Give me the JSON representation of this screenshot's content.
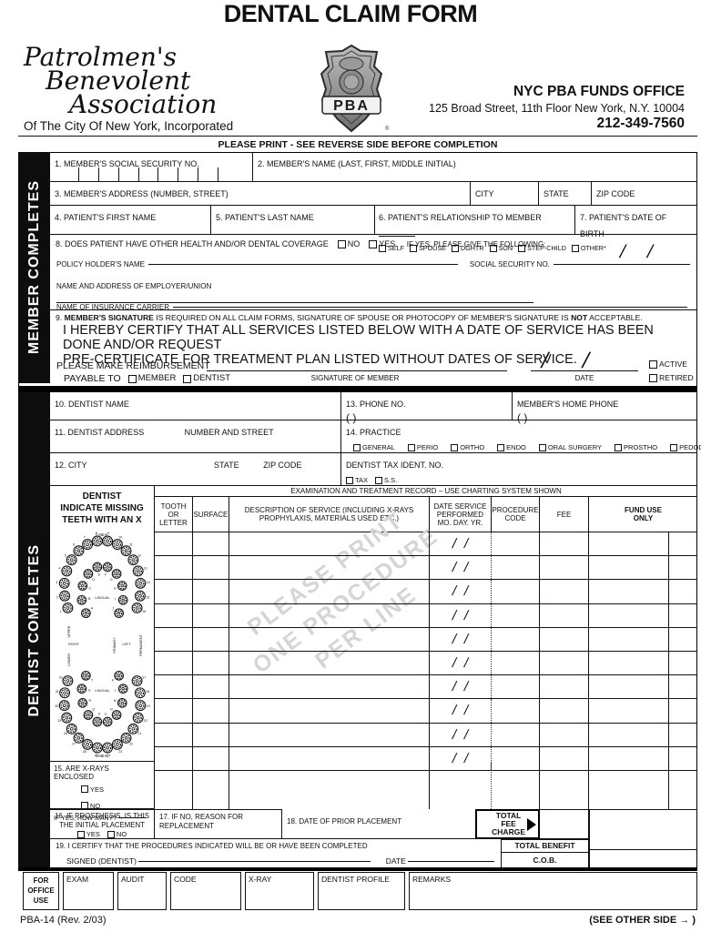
{
  "colors": {
    "ink": "#111111",
    "watermark": "#d5d5d5"
  },
  "header": {
    "title": "DENTAL CLAIM FORM",
    "org_line1": "Patrolmen's",
    "org_line2": "Benevolent",
    "org_line3": "Association",
    "org_sub": "Of The City Of New York, Incorporated",
    "badge": "PBA",
    "office_name": "NYC PBA FUNDS OFFICE",
    "office_address": "125 Broad Street, 11th Floor   New York, N.Y. 10004",
    "office_phone": "212-349-7560",
    "notice": "PLEASE PRINT - SEE REVERSE SIDE BEFORE COMPLETION"
  },
  "sidebar": {
    "member": "MEMBER COMPLETES",
    "dentist": "DENTIST COMPLETES"
  },
  "member": {
    "f1_label": "1.  MEMBER'S SOCIAL SECURITY NO.",
    "f2_label": "2.  MEMBER'S NAME (LAST, FIRST, MIDDLE INITIAL)",
    "f3_label": "3.  MEMBER'S ADDRESS (NUMBER, STREET)",
    "city": "CITY",
    "state": "STATE",
    "zip": "ZIP CODE",
    "f4_label": "4.  PATIENT'S FIRST NAME",
    "f5_label": "5.  PATIENT'S LAST NAME",
    "f6_label": "6.  PATIENT'S RELATIONSHIP TO MEMBER",
    "f6_options": [
      "SELF",
      "SPOUSE",
      "DGHTR",
      "SON",
      "STEP-CHILD",
      "OTHER*"
    ],
    "f7_label": "7.  PATIENT'S DATE OF BIRTH",
    "f8_label": "8.  DOES PATIENT HAVE OTHER HEALTH AND/OR DENTAL COVERAGE",
    "f8_no": "NO",
    "f8_yes": "YES.",
    "f8_if": "IF YES, PLEASE GIVE THE FOLLOWING:",
    "policy": "POLICY HOLDER'S NAME",
    "policy_ssn": "SOCIAL SECURITY NO.",
    "employer": "NAME AND ADDRESS OF EMPLOYER/UNION",
    "carrier": "NAME OF INSURANCE CARRIER",
    "f9_prefix": "9.",
    "f9_bold1": "MEMBER'S SIGNATURE",
    "f9_mid": "IS REQUIRED ON ALL CLAIM FORMS, SIGNATURE OF SPOUSE OR PHOTOCOPY OF MEMBER'S SIGNATURE IS",
    "f9_bold2": "NOT",
    "f9_suffix": "ACCEPTABLE.",
    "certify_line1": "I HEREBY CERTIFY THAT ALL SERVICES LISTED BELOW WITH A DATE OF SERVICE HAS BEEN DONE AND/OR REQUEST",
    "certify_line2": "PRE-CERTIFICATE FOR TREATMENT PLAN LISTED WITHOUT DATES OF SERVICE.",
    "reimb_line1": "PLEASE MAKE REIMBURSEMENT",
    "reimb_line2": "PAYABLE TO",
    "opt_member": "MEMBER",
    "opt_dentist": "DENTIST",
    "sig_caption": "SIGNATURE OF MEMBER",
    "date_caption": "DATE",
    "status_options": [
      "ACTIVE",
      "RETIRED"
    ]
  },
  "dentist": {
    "f10_label": "10.  DENTIST NAME",
    "f13_label": "13.  PHONE NO.",
    "home_phone_label": "MEMBER'S HOME PHONE",
    "phone_paren": "(                )",
    "f11_label": "11. DENTIST ADDRESS",
    "f11_sub": "NUMBER AND STREET",
    "f14_label": "14. PRACTICE",
    "f14_options": [
      "GENERAL",
      "PERIO",
      "ORTHO",
      "ENDO",
      "ORAL SURGERY",
      "PROSTHO",
      "PEDOD"
    ],
    "f12_label": "12. CITY",
    "f12_state": "STATE",
    "f12_zip": "ZIP CODE",
    "tax_label": "DENTIST TAX IDENT. NO.",
    "tax_options": [
      "TAX",
      "S.S."
    ]
  },
  "tooth_panel": {
    "title": "DENTIST\nINDICATE MISSING\nTEETH WITH AN X",
    "labial": "LABIAL",
    "lingual": "LINGUAL",
    "upper": "UPPER",
    "lower": "LOWER",
    "right": "RIGHT",
    "left": "LEFT",
    "permanent": "PERMANENT",
    "primary": "PRIMARY",
    "upper_outer": [
      "1",
      "2",
      "3",
      "4",
      "5",
      "6",
      "7",
      "8",
      "9",
      "10",
      "11",
      "12",
      "13",
      "14",
      "15",
      "16"
    ],
    "upper_inner": [
      "A",
      "B",
      "C",
      "D",
      "E",
      "F",
      "G",
      "H",
      "I",
      "J"
    ],
    "lower_outer": [
      "32",
      "31",
      "30",
      "29",
      "28",
      "27",
      "26",
      "25",
      "24",
      "23",
      "22",
      "21",
      "20",
      "19",
      "18",
      "17"
    ],
    "lower_inner": [
      "T",
      "S",
      "R",
      "Q",
      "P",
      "O",
      "N",
      "M",
      "L",
      "K"
    ]
  },
  "service_table": {
    "band": "EXAMINATION AND TREATMENT RECORD – USE CHARTING SYSTEM SHOWN",
    "col_tooth": "TOOTH\nOR\nLETTER",
    "col_surface": "SURFACE",
    "col_desc": "DESCRIPTION OF SERVICE (INCLUDING X-RAYS\nPROPHYLAXIS, MATERIALS USED ETC.)",
    "col_date": "DATE SERVICE\nPERFORMED\nMO. DAY.  YR.",
    "col_proc": "PROCEDURE\nCODE",
    "col_fee": "FEE",
    "col_fund": "FUND USE\nONLY",
    "date_rows": 10,
    "watermark": "PLEASE PRINT\nONE PROCEDURE\nPER LINE"
  },
  "f15": {
    "label": "15.  ARE X-RAYS ENCLOSED",
    "yes": "YES",
    "no": "NO",
    "how_many": "IF YES, HOW MANY?"
  },
  "f16": {
    "label": "16.  IF PROSTHESIS, IS THIS\nTHE INITIAL PLACEMENT",
    "yes": "YES",
    "no": "NO"
  },
  "f17": {
    "label": "17. IF NO, REASON FOR\nREPLACEMENT"
  },
  "f18": {
    "label": "18.  DATE OF PRIOR PLACEMENT"
  },
  "totals": {
    "total_fee": "TOTAL\nFEE\nCHARGE",
    "total_benefit": "TOTAL BENEFIT",
    "cob": "C.O.B."
  },
  "f19": {
    "label": "19.  I CERTIFY THAT THE PROCEDURES INDICATED WILL BE OR HAVE BEEN COMPLETED",
    "signed": "SIGNED (DENTIST)",
    "date": "DATE"
  },
  "office_use": {
    "label": "FOR\nOFFICE\nUSE",
    "cols": [
      "EXAM",
      "AUDIT",
      "CODE",
      "X-RAY",
      "DENTIST PROFILE",
      "REMARKS"
    ]
  },
  "footer": {
    "form_no": "PBA-14 (Rev. 2/03)",
    "other_side": "(SEE OTHER SIDE → )"
  }
}
